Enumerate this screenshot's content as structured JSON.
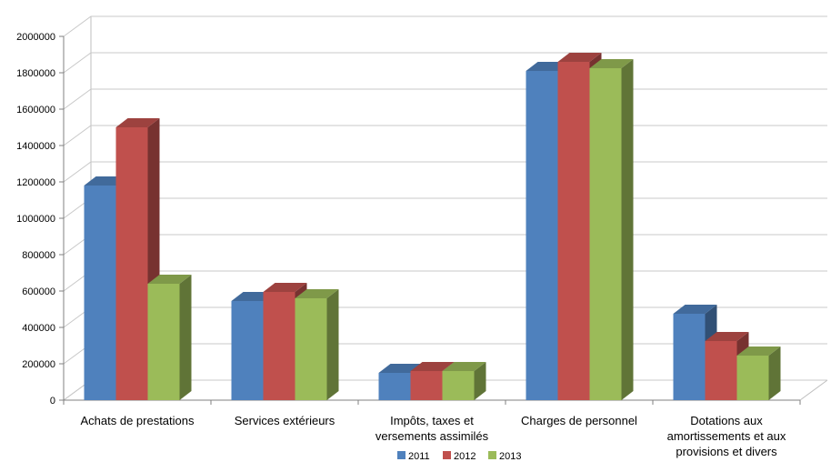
{
  "chart_data": {
    "type": "bar",
    "categories": [
      [
        "Achats de prestations"
      ],
      [
        "Services extérieurs"
      ],
      [
        "Impôts, taxes et",
        "versements assimilés"
      ],
      [
        "Charges de personnel"
      ],
      [
        "Dotations aux",
        "amortissements et aux",
        "provisions et divers"
      ]
    ],
    "series": [
      {
        "name": "2011",
        "color": "#4F81BD",
        "values": [
          1180000,
          545000,
          150000,
          1810000,
          475000
        ]
      },
      {
        "name": "2012",
        "color": "#C0504D",
        "values": [
          1500000,
          595000,
          160000,
          1860000,
          325000
        ]
      },
      {
        "name": "2013",
        "color": "#9BBB59",
        "values": [
          640000,
          560000,
          160000,
          1825000,
          245000
        ]
      }
    ],
    "yticks": [
      "0",
      "200000",
      "400000",
      "600000",
      "800000",
      "1000000",
      "1200000",
      "1400000",
      "1600000",
      "1800000",
      "2000000"
    ],
    "ylim": [
      0,
      2000000
    ],
    "grid": true,
    "legend_position": "bottom"
  }
}
